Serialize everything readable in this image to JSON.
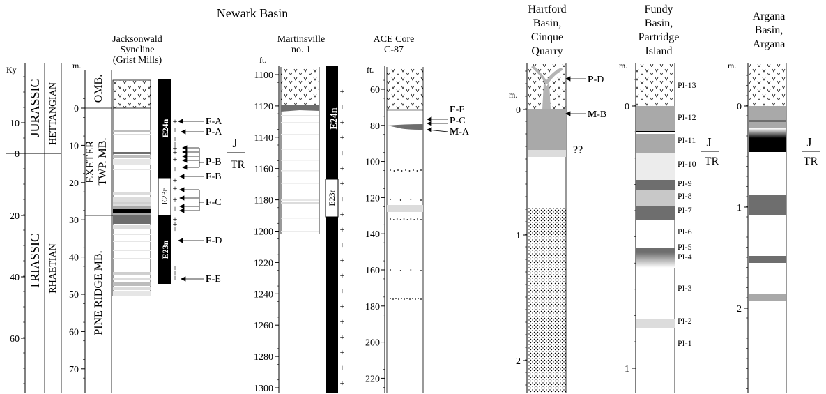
{
  "title": "Newark Basin",
  "boundary": {
    "top": "J",
    "bottom": "TR"
  },
  "ky_scale": {
    "unit": "Ky",
    "ticks": [
      "10",
      "0",
      "20",
      "40",
      "60"
    ],
    "periods": [
      "JURASSIC",
      "TRIASSIC"
    ],
    "stages": [
      "HETTANGIAN",
      "RHAETIAN"
    ]
  },
  "jacksonwald": {
    "title": [
      "Jacksonwald",
      "Syncline",
      "(Grist Mills)"
    ],
    "unit": "m.",
    "ticks": [
      "0",
      "10",
      "20",
      "30",
      "40",
      "50",
      "60",
      "70"
    ],
    "members": [
      "OMB.",
      "EXETER",
      "TWP. MB.",
      "PINE RIDGE MB."
    ],
    "chrons": [
      "E24n",
      "E23r",
      "E23n"
    ],
    "markers": [
      {
        "bold": "F",
        "rest": "-A"
      },
      {
        "bold": "P",
        "rest": "-A"
      },
      {
        "bold": "P",
        "rest": "-B"
      },
      {
        "bold": "F",
        "rest": "-B"
      },
      {
        "bold": "F",
        "rest": "-C"
      },
      {
        "bold": "F",
        "rest": "-D"
      },
      {
        "bold": "F",
        "rest": "-E"
      }
    ]
  },
  "martinsville": {
    "title": [
      "Martinsville",
      "no. 1"
    ],
    "unit": "ft.",
    "ticks": [
      "1100",
      "1120",
      "1140",
      "1160",
      "1180",
      "1200",
      "1220",
      "1240",
      "1260",
      "1280",
      "1300"
    ],
    "chrons": [
      "E24n",
      "E23r"
    ]
  },
  "ace": {
    "title": [
      "ACE Core",
      "C-87"
    ],
    "unit": "ft.",
    "ticks": [
      "60",
      "80",
      "100",
      "120",
      "140",
      "160",
      "180",
      "200",
      "220"
    ],
    "markers": [
      {
        "bold": "F",
        "rest": "-F"
      },
      {
        "bold": "P",
        "rest": "-C"
      },
      {
        "bold": "M",
        "rest": "-A"
      }
    ]
  },
  "hartford": {
    "title": [
      "Hartford",
      "Basin,",
      "Cinque",
      "Quarry"
    ],
    "unit": "m.",
    "ticks": [
      "0",
      "1",
      "2"
    ],
    "markers": [
      {
        "bold": "P",
        "rest": "-D"
      },
      {
        "bold": "M",
        "rest": "-B"
      }
    ],
    "query": "??"
  },
  "fundy": {
    "title": [
      "Fundy",
      "Basin,",
      "Partridge",
      "Island"
    ],
    "unit": "m.",
    "ticks": [
      "0",
      "1"
    ],
    "units": [
      "PI-13",
      "PI-12",
      "PI-11",
      "PI-10",
      "PI-9",
      "PI-8",
      "PI-7",
      "PI-6",
      "PI-5",
      "PI-4",
      "PI-3",
      "PI-2",
      "PI-1"
    ]
  },
  "argana": {
    "title": [
      "Argana",
      "Basin,",
      "Argana"
    ],
    "unit": "m.",
    "ticks": [
      "0",
      "1",
      "2"
    ]
  },
  "colors": {
    "black": "#000000",
    "dark_gray": "#6e6e6e",
    "mid_gray": "#a9a9a9",
    "light_gray": "#dcdcdc"
  }
}
